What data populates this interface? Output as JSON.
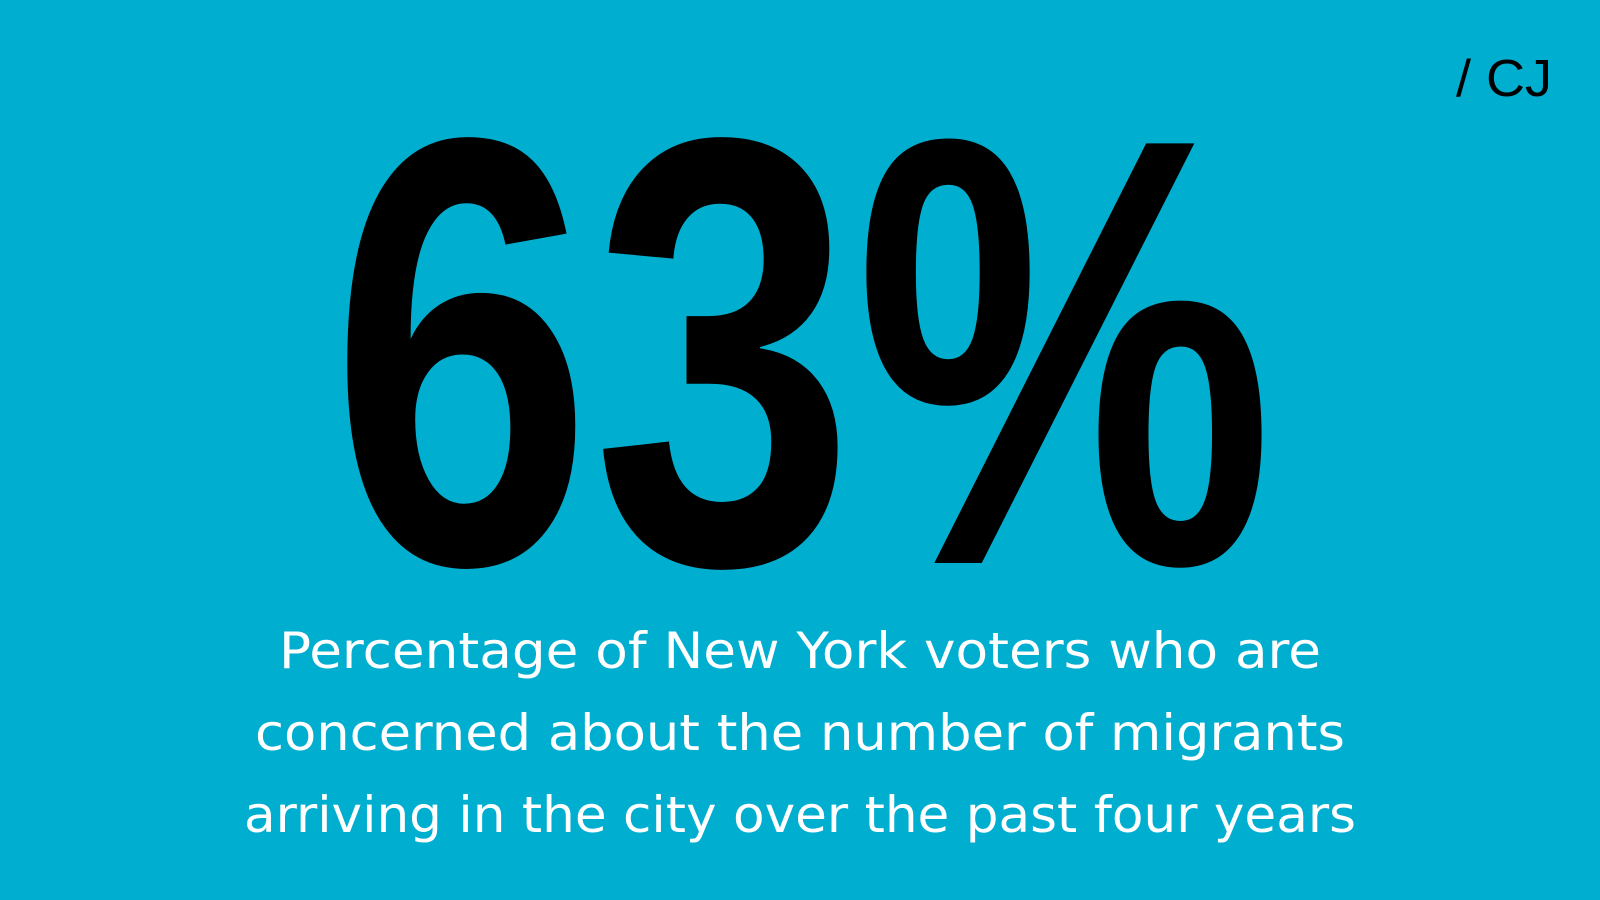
{
  "logo": "/ CJ",
  "headline": "63%",
  "caption": [
    "Percentage of New York voters who are",
    "concerned about the number of migrants",
    "arriving in the city over the past four years"
  ]
}
